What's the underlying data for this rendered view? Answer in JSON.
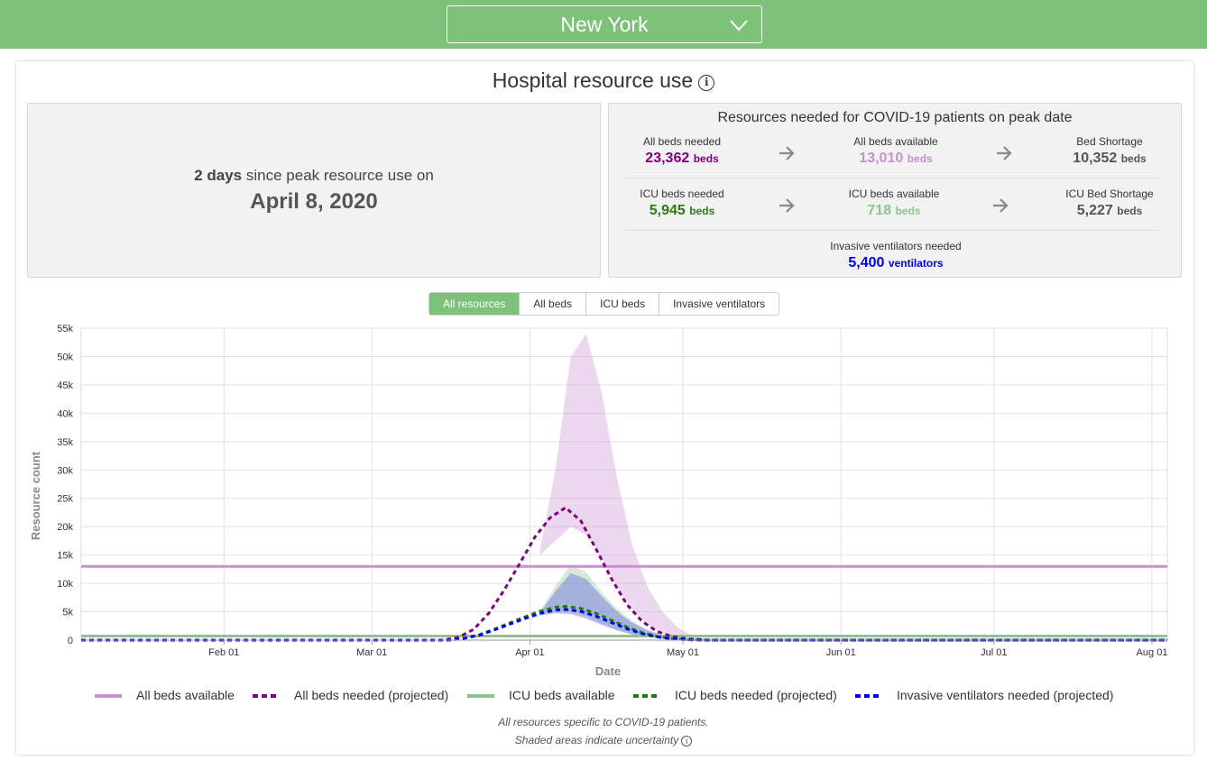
{
  "header": {
    "location": "New York"
  },
  "section": {
    "title": "Hospital resource use"
  },
  "peak": {
    "days_count": "2 days",
    "days_text": "since peak resource use on",
    "date": "April 8, 2020"
  },
  "resources": {
    "title": "Resources needed for COVID-19 patients on peak date",
    "beds_needed": {
      "label": "All beds needed",
      "value": "23,362",
      "unit": "beds"
    },
    "beds_available": {
      "label": "All beds available",
      "value": "13,010",
      "unit": "beds"
    },
    "bed_shortage": {
      "label": "Bed Shortage",
      "value": "10,352",
      "unit": "beds"
    },
    "icu_needed": {
      "label": "ICU beds needed",
      "value": "5,945",
      "unit": "beds"
    },
    "icu_available": {
      "label": "ICU beds available",
      "value": "718",
      "unit": "beds"
    },
    "icu_shortage": {
      "label": "ICU Bed Shortage",
      "value": "5,227",
      "unit": "beds"
    },
    "ventilators": {
      "label": "Invasive ventilators needed",
      "value": "5,400",
      "unit": "ventilators"
    }
  },
  "tabs": [
    "All resources",
    "All beds",
    "ICU beds",
    "Invasive ventilators"
  ],
  "footnote": {
    "line1": "All resources specific to COVID-19 patients.",
    "line2": "Shaded areas indicate uncertainty"
  },
  "colors": {
    "brand": "#7dc278",
    "all_beds_available": "#c98fcf",
    "all_beds_needed": "#800080",
    "icu_available": "#8cc48c",
    "icu_needed": "#1a7a1a",
    "ventilators": "#0000e6"
  },
  "chart_data": {
    "type": "line",
    "xlabel": "Date",
    "ylabel": "Resource count",
    "x_ticks": [
      "Feb 01",
      "Mar 01",
      "Apr 01",
      "May 01",
      "Jun 01",
      "Jul 01",
      "Aug 01"
    ],
    "y_ticks": [
      "0",
      "5k",
      "10k",
      "15k",
      "20k",
      "25k",
      "30k",
      "35k",
      "40k",
      "45k",
      "50k",
      "55k"
    ],
    "ylim": [
      0,
      55000
    ],
    "xlim": [
      "2020-01-04",
      "2020-08-04"
    ],
    "grid": true,
    "legend_position": "bottom",
    "series": [
      {
        "name": "All beds available",
        "style": "solid",
        "color": "#c98fcf",
        "x": [
          "2020-01-04",
          "2020-08-04"
        ],
        "y": [
          13010,
          13010
        ]
      },
      {
        "name": "All beds needed (projected)",
        "style": "dashed",
        "color": "#800080",
        "x": [
          "2020-01-04",
          "2020-03-15",
          "2020-03-18",
          "2020-03-21",
          "2020-03-24",
          "2020-03-27",
          "2020-03-30",
          "2020-04-02",
          "2020-04-05",
          "2020-04-08",
          "2020-04-11",
          "2020-04-14",
          "2020-04-17",
          "2020-04-20",
          "2020-04-23",
          "2020-04-26",
          "2020-04-29",
          "2020-05-02",
          "2020-05-06",
          "2020-08-04"
        ],
        "y": [
          0,
          0,
          500,
          1900,
          4800,
          8900,
          13500,
          18200,
          21600,
          23362,
          21000,
          16000,
          10800,
          6300,
          3300,
          1500,
          600,
          200,
          0,
          0
        ]
      },
      {
        "name": "ICU beds available",
        "style": "solid",
        "color": "#8cc48c",
        "x": [
          "2020-01-04",
          "2020-08-04"
        ],
        "y": [
          718,
          718
        ]
      },
      {
        "name": "ICU beds needed (projected)",
        "style": "dashed",
        "color": "#1a7a1a",
        "x": [
          "2020-01-04",
          "2020-03-16",
          "2020-03-19",
          "2020-03-22",
          "2020-03-25",
          "2020-03-28",
          "2020-03-31",
          "2020-04-03",
          "2020-04-06",
          "2020-04-08",
          "2020-04-11",
          "2020-04-14",
          "2020-04-17",
          "2020-04-20",
          "2020-04-23",
          "2020-04-26",
          "2020-04-29",
          "2020-05-02",
          "2020-05-06",
          "2020-08-04"
        ],
        "y": [
          0,
          0,
          300,
          900,
          1900,
          3000,
          4100,
          5100,
          5800,
          5945,
          5600,
          4700,
          3500,
          2300,
          1300,
          650,
          250,
          80,
          0,
          0
        ]
      },
      {
        "name": "Invasive ventilators needed (projected)",
        "style": "dashed",
        "color": "#0000e6",
        "x": [
          "2020-01-04",
          "2020-03-16",
          "2020-03-19",
          "2020-03-22",
          "2020-03-25",
          "2020-03-28",
          "2020-03-31",
          "2020-04-03",
          "2020-04-06",
          "2020-04-08",
          "2020-04-11",
          "2020-04-14",
          "2020-04-17",
          "2020-04-20",
          "2020-04-23",
          "2020-04-26",
          "2020-04-29",
          "2020-05-02",
          "2020-05-06",
          "2020-08-04"
        ],
        "y": [
          0,
          0,
          280,
          850,
          1800,
          2800,
          3800,
          4700,
          5300,
          5400,
          5050,
          4200,
          3100,
          2000,
          1150,
          550,
          200,
          60,
          0,
          0
        ]
      }
    ],
    "bands": [
      {
        "name": "All beds needed uncertainty",
        "color": "#c98fcf",
        "x": [
          "2020-04-03",
          "2020-04-06",
          "2020-04-09",
          "2020-04-12",
          "2020-04-15",
          "2020-04-18",
          "2020-04-21",
          "2020-04-24",
          "2020-04-27",
          "2020-04-30",
          "2020-05-03",
          "2020-05-07"
        ],
        "upper": [
          16000,
          30000,
          50000,
          54000,
          44000,
          29000,
          17000,
          9500,
          5000,
          2200,
          700,
          0
        ],
        "lower": [
          15000,
          17500,
          20000,
          18500,
          14500,
          9500,
          5500,
          2800,
          1200,
          400,
          100,
          0
        ]
      },
      {
        "name": "ICU beds needed uncertainty",
        "color": "#8cc48c",
        "x": [
          "2020-04-03",
          "2020-04-06",
          "2020-04-09",
          "2020-04-12",
          "2020-04-15",
          "2020-04-18",
          "2020-04-21",
          "2020-04-24",
          "2020-04-27",
          "2020-04-30",
          "2020-05-03",
          "2020-05-07"
        ],
        "upper": [
          5200,
          9500,
          13300,
          12000,
          8500,
          5600,
          3400,
          1900,
          900,
          400,
          120,
          0
        ],
        "lower": [
          4700,
          5200,
          5100,
          4200,
          3000,
          1900,
          1100,
          600,
          250,
          90,
          20,
          0
        ]
      },
      {
        "name": "Invasive ventilators needed uncertainty",
        "color": "#4a4ae6",
        "x": [
          "2020-04-03",
          "2020-04-06",
          "2020-04-09",
          "2020-04-12",
          "2020-04-15",
          "2020-04-18",
          "2020-04-21",
          "2020-04-24",
          "2020-04-27",
          "2020-04-30",
          "2020-05-03",
          "2020-05-07"
        ],
        "upper": [
          4900,
          8600,
          11800,
          10800,
          7800,
          5100,
          3100,
          1700,
          800,
          350,
          100,
          0
        ],
        "lower": [
          4300,
          4700,
          4600,
          3800,
          2700,
          1700,
          1000,
          550,
          220,
          80,
          20,
          0
        ]
      }
    ]
  }
}
